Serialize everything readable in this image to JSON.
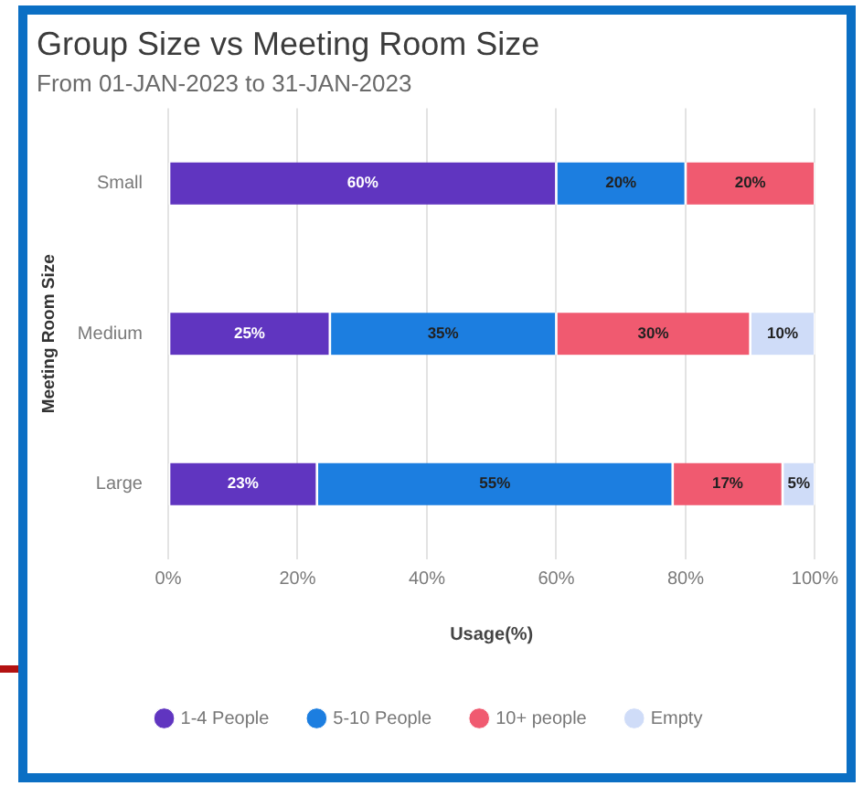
{
  "chart_data": {
    "type": "bar",
    "title": "Group Size vs Meeting Room Size",
    "subtitle": "From 01-JAN-2023 to 31-JAN-2023",
    "xlabel": "Usage(%)",
    "ylabel": "Meeting Room Size",
    "categories": [
      "Small",
      "Medium",
      "Large"
    ],
    "orientation": "horizontal",
    "stacked": true,
    "series": [
      {
        "name": "1-4 People",
        "color": "#6035c0",
        "values": [
          60,
          25,
          23
        ],
        "value_labels": [
          "60%",
          "25%",
          "23%"
        ]
      },
      {
        "name": "5-10 People",
        "color": "#1c7ee0",
        "values": [
          20,
          35,
          55
        ],
        "value_labels": [
          "20%",
          "35%",
          "55%"
        ]
      },
      {
        "name": "10+ people",
        "color": "#f05a70",
        "values": [
          20,
          30,
          17
        ],
        "value_labels": [
          "20%",
          "30%",
          "17%"
        ]
      },
      {
        "name": "Empty",
        "color": "#cfdcf8",
        "values": [
          null,
          10,
          5
        ],
        "value_labels": [
          null,
          "10%",
          "5%"
        ]
      }
    ],
    "xlim": [
      0,
      100
    ],
    "xticks": [
      {
        "value": 0,
        "label": "0%"
      },
      {
        "value": 20,
        "label": "20%"
      },
      {
        "value": 40,
        "label": "40%"
      },
      {
        "value": 60,
        "label": "60%"
      },
      {
        "value": 80,
        "label": "80%"
      },
      {
        "value": 100,
        "label": "100%"
      }
    ],
    "grid": "x",
    "legend": "bottom"
  }
}
